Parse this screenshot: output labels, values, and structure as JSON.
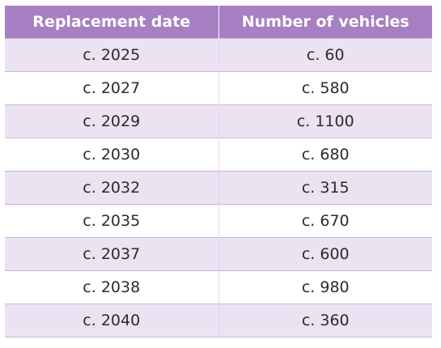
{
  "colors": {
    "header_bg": "#a77fc3",
    "row_shade": "#ebe2f2",
    "row_plain": "#ffffff"
  },
  "table": {
    "headers": [
      "Replacement date",
      "Number of vehicles"
    ],
    "rows": [
      [
        "c. 2025",
        "c. 60"
      ],
      [
        "c. 2027",
        "c. 580"
      ],
      [
        "c. 2029",
        "c. 1100"
      ],
      [
        "c. 2030",
        "c. 680"
      ],
      [
        "c. 2032",
        "c. 315"
      ],
      [
        "c. 2035",
        "c. 670"
      ],
      [
        "c. 2037",
        "c. 600"
      ],
      [
        "c. 2038",
        "c. 980"
      ],
      [
        "c. 2040",
        "c. 360"
      ]
    ]
  }
}
